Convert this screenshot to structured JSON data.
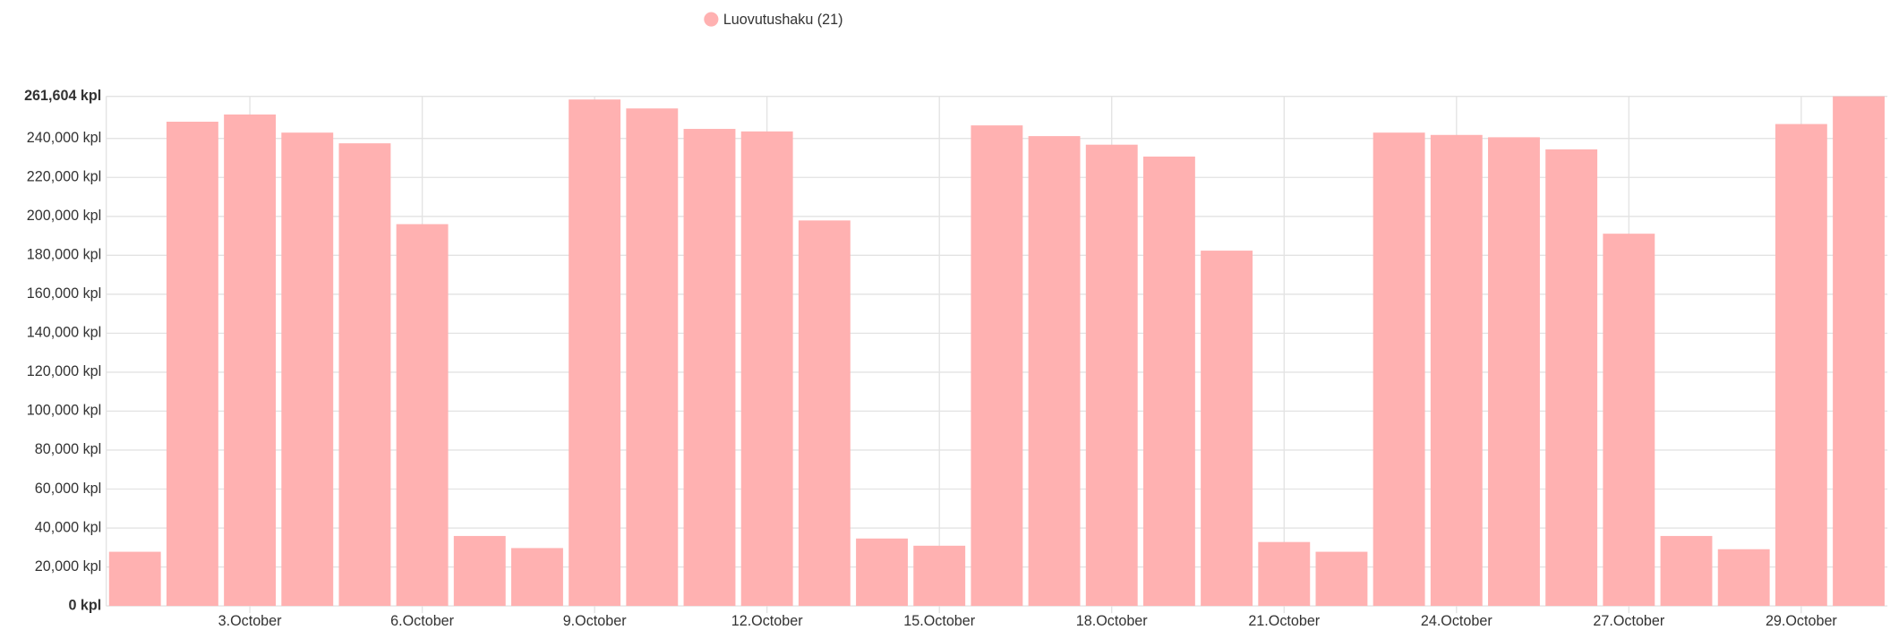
{
  "chart_data": {
    "type": "bar",
    "categories": [
      null,
      null,
      "3.October",
      null,
      null,
      "6.October",
      null,
      null,
      "9.October",
      null,
      null,
      "12.October",
      null,
      null,
      "15.October",
      null,
      null,
      "18.October",
      null,
      null,
      "21.October",
      null,
      null,
      "24.October",
      null,
      null,
      "27.October",
      null,
      null,
      "29.October",
      null
    ],
    "series": [
      {
        "name": "Luovutushaku (21)",
        "color": "#ffb1b1",
        "values": [
          27800,
          248600,
          252300,
          243000,
          237500,
          196000,
          35900,
          29700,
          260000,
          255400,
          244900,
          243600,
          197900,
          34600,
          30900,
          246700,
          241200,
          236800,
          230700,
          182400,
          32800,
          27800,
          243000,
          241800,
          240600,
          234400,
          191100,
          35900,
          29100,
          247400,
          261604
        ]
      }
    ],
    "ylim": [
      0,
      261604
    ],
    "yticks": [
      {
        "value": 0,
        "label": "0 kpl"
      },
      {
        "value": 20000,
        "label": "20,000 kpl"
      },
      {
        "value": 40000,
        "label": "40,000 kpl"
      },
      {
        "value": 60000,
        "label": "60,000 kpl"
      },
      {
        "value": 80000,
        "label": "80,000 kpl"
      },
      {
        "value": 100000,
        "label": "100,000 kpl"
      },
      {
        "value": 120000,
        "label": "120,000 kpl"
      },
      {
        "value": 140000,
        "label": "140,000 kpl"
      },
      {
        "value": 160000,
        "label": "160,000 kpl"
      },
      {
        "value": 180000,
        "label": "180,000 kpl"
      },
      {
        "value": 200000,
        "label": "200,000 kpl"
      },
      {
        "value": 220000,
        "label": "220,000 kpl"
      },
      {
        "value": 240000,
        "label": "240,000 kpl"
      },
      {
        "value": 261604,
        "label": "261,604 kpl"
      }
    ],
    "grid": true,
    "legend": "top"
  }
}
